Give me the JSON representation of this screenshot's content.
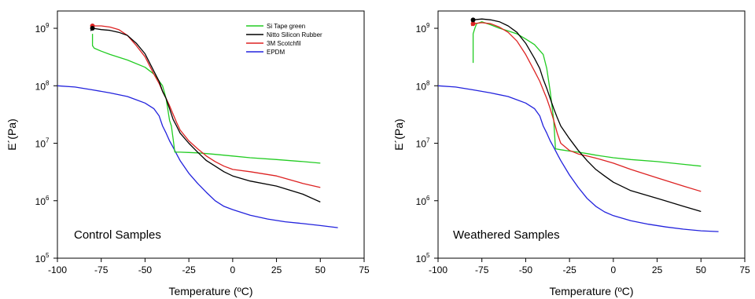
{
  "chart_data": [
    {
      "type": "line",
      "annotation": "Control Samples",
      "xlabel": "Temperature (ºC)",
      "ylabel": "E´(Pa)",
      "xlim": [
        -100,
        75
      ],
      "ylim": [
        100000,
        2000000000
      ],
      "yscale": "log",
      "xticks": [
        "-100",
        "-75",
        "-50",
        "-25",
        "0",
        "25",
        "50",
        "75"
      ],
      "yticks": [
        "10",
        "10",
        "10",
        "10",
        "10"
      ],
      "ytick_exponents": [
        "5",
        "6",
        "7",
        "8",
        "9"
      ],
      "legend_position": "top-right",
      "series": [
        {
          "name": "Si Tape green",
          "color": "#22cc22",
          "x": [
            -80,
            -80,
            -79,
            -75,
            -70,
            -60,
            -50,
            -45,
            -40,
            -38,
            -36,
            -35,
            -34,
            -33,
            -30,
            -25,
            -20,
            -15,
            -10,
            0,
            10,
            25,
            40,
            50
          ],
          "y": [
            800000000,
            500000000,
            450000000,
            400000000,
            350000000,
            280000000,
            210000000,
            160000000,
            100000000,
            60000000,
            25000000,
            20000000,
            12000000,
            7000000,
            7000000,
            6900000,
            6800000,
            6600000,
            6400000,
            6000000,
            5600000,
            5200000,
            4800000,
            4500000
          ]
        },
        {
          "name": "Nitto Silicon Rubber",
          "color": "#000000",
          "x": [
            -81,
            -80,
            -75,
            -70,
            -65,
            -60,
            -55,
            -50,
            -45,
            -42,
            -40,
            -38,
            -36,
            -34,
            -32,
            -30,
            -25,
            -20,
            -15,
            -10,
            -5,
            0,
            10,
            25,
            40,
            50
          ],
          "y": [
            900000000,
            1000000000,
            950000000,
            920000000,
            850000000,
            750000000,
            550000000,
            360000000,
            180000000,
            120000000,
            80000000,
            60000000,
            40000000,
            26000000,
            20000000,
            15000000,
            10000000,
            7000000,
            5000000,
            4000000,
            3200000,
            2700000,
            2200000,
            1800000,
            1300000,
            950000
          ]
        },
        {
          "name": "3M Scotchfil",
          "color": "#dd2222",
          "x": [
            -81,
            -80,
            -75,
            -70,
            -65,
            -60,
            -55,
            -50,
            -45,
            -42,
            -40,
            -38,
            -36,
            -34,
            -32,
            -30,
            -25,
            -20,
            -15,
            -10,
            -5,
            0,
            10,
            25,
            40,
            50
          ],
          "y": [
            1000000000,
            1100000000,
            1100000000,
            1050000000,
            950000000,
            750000000,
            500000000,
            320000000,
            160000000,
            110000000,
            80000000,
            60000000,
            45000000,
            32000000,
            23000000,
            17000000,
            11000000,
            8000000,
            6000000,
            4800000,
            4000000,
            3500000,
            3200000,
            2700000,
            2000000,
            1700000
          ]
        },
        {
          "name": "EPDM",
          "color": "#2222dd",
          "x": [
            -100,
            -90,
            -80,
            -70,
            -60,
            -50,
            -45,
            -42,
            -40,
            -38,
            -36,
            -34,
            -32,
            -30,
            -25,
            -20,
            -15,
            -10,
            -5,
            0,
            10,
            20,
            30,
            40,
            50,
            60
          ],
          "y": [
            100000000,
            95000000,
            85000000,
            75000000,
            65000000,
            50000000,
            40000000,
            30000000,
            20000000,
            15000000,
            11000000,
            8500000,
            6500000,
            5000000,
            3000000,
            2000000,
            1400000,
            1000000,
            800000,
            700000,
            560000,
            480000,
            430000,
            400000,
            370000,
            340000
          ]
        }
      ]
    },
    {
      "type": "line",
      "annotation": "Weathered Samples",
      "xlabel": "Temperature (ºC)",
      "ylabel": "E´(Pa)",
      "xlim": [
        -100,
        75
      ],
      "ylim": [
        100000,
        2000000000
      ],
      "yscale": "log",
      "xticks": [
        "-100",
        "-75",
        "-50",
        "-25",
        "0",
        "25",
        "50",
        "75"
      ],
      "yticks": [
        "10",
        "10",
        "10",
        "10",
        "10"
      ],
      "ytick_exponents": [
        "5",
        "6",
        "7",
        "8",
        "9"
      ],
      "series": [
        {
          "name": "Si Tape green",
          "color": "#22cc22",
          "x": [
            -80,
            -80,
            -79,
            -78,
            -75,
            -70,
            -65,
            -60,
            -55,
            -50,
            -45,
            -40,
            -38,
            -36,
            -34,
            -33,
            -30,
            -25,
            -20,
            -15,
            -10,
            0,
            10,
            25,
            40,
            50
          ],
          "y": [
            250000000,
            800000000,
            1000000000,
            1200000000,
            1300000000,
            1150000000,
            1000000000,
            900000000,
            800000000,
            650000000,
            520000000,
            350000000,
            200000000,
            80000000,
            25000000,
            8000000,
            7700000,
            7300000,
            7000000,
            6600000,
            6200000,
            5600000,
            5200000,
            4800000,
            4300000,
            4000000
          ]
        },
        {
          "name": "Nitto Silicon Rubber",
          "color": "#000000",
          "x": [
            -81,
            -80,
            -75,
            -70,
            -65,
            -60,
            -55,
            -50,
            -45,
            -42,
            -40,
            -38,
            -36,
            -34,
            -32,
            -30,
            -25,
            -20,
            -15,
            -10,
            -5,
            0,
            10,
            25,
            40,
            50
          ],
          "y": [
            1300000000,
            1400000000,
            1450000000,
            1400000000,
            1300000000,
            1100000000,
            850000000,
            550000000,
            300000000,
            200000000,
            130000000,
            90000000,
            60000000,
            40000000,
            28000000,
            20000000,
            12000000,
            7500000,
            5000000,
            3500000,
            2700000,
            2100000,
            1500000,
            1100000,
            800000,
            650000
          ]
        },
        {
          "name": "3M Scotchfil",
          "color": "#dd2222",
          "x": [
            -81,
            -80,
            -75,
            -70,
            -65,
            -60,
            -55,
            -50,
            -45,
            -42,
            -40,
            -38,
            -36,
            -34,
            -32,
            -30,
            -25,
            -20,
            -15,
            -10,
            -5,
            0,
            10,
            25,
            40,
            50
          ],
          "y": [
            1100000000,
            1200000000,
            1250000000,
            1200000000,
            1050000000,
            850000000,
            600000000,
            350000000,
            180000000,
            120000000,
            85000000,
            60000000,
            40000000,
            25000000,
            15000000,
            10000000,
            7500000,
            6500000,
            6000000,
            5500000,
            5000000,
            4500000,
            3500000,
            2500000,
            1800000,
            1450000
          ]
        },
        {
          "name": "EPDM",
          "color": "#2222dd",
          "x": [
            -100,
            -90,
            -80,
            -70,
            -60,
            -50,
            -45,
            -42,
            -40,
            -38,
            -36,
            -34,
            -32,
            -30,
            -25,
            -20,
            -15,
            -10,
            -5,
            0,
            10,
            20,
            30,
            40,
            50,
            60
          ],
          "y": [
            100000000,
            95000000,
            85000000,
            75000000,
            65000000,
            50000000,
            40000000,
            30000000,
            20000000,
            15000000,
            11000000,
            8500000,
            6500000,
            5000000,
            2800000,
            1700000,
            1100000,
            800000,
            640000,
            550000,
            450000,
            390000,
            350000,
            320000,
            300000,
            290000
          ]
        }
      ]
    }
  ]
}
